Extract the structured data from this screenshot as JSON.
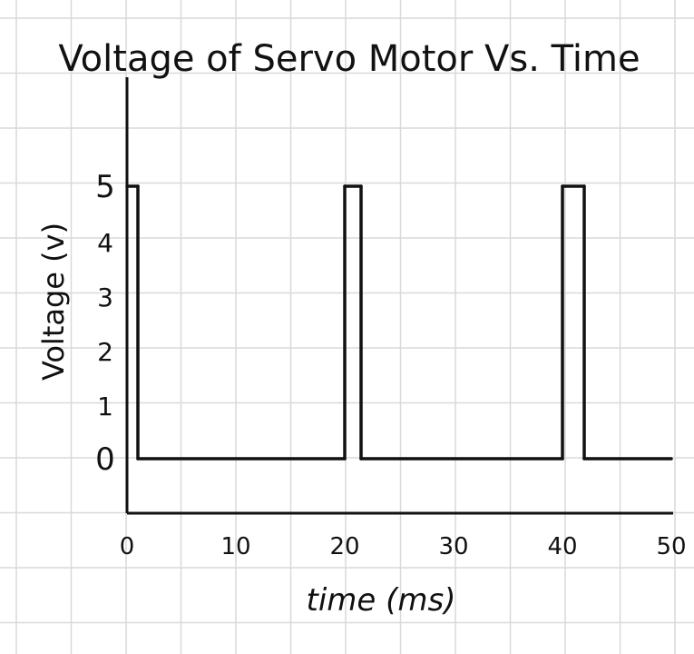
{
  "chart_data": {
    "type": "line",
    "title": "Voltage of Servo Motor Vs. Time",
    "xlabel": "time (ms)",
    "ylabel": "Voltage (v)",
    "x_ticks": [
      "0",
      "10",
      "20",
      "30",
      "40",
      "50"
    ],
    "y_ticks": [
      "0",
      "1",
      "2",
      "3",
      "4",
      "5"
    ],
    "xlim": [
      0,
      50
    ],
    "ylim": [
      0,
      5
    ],
    "grid": true,
    "series": [
      {
        "x": [
          0,
          1,
          1,
          20,
          20,
          21.5,
          21.5,
          40,
          40,
          42,
          42,
          50
        ],
        "y": [
          5,
          5,
          0,
          0,
          5,
          5,
          0,
          0,
          5,
          5,
          0,
          0
        ]
      }
    ],
    "colors": {
      "line": "#111111",
      "grid": "#d9d9d9"
    }
  }
}
